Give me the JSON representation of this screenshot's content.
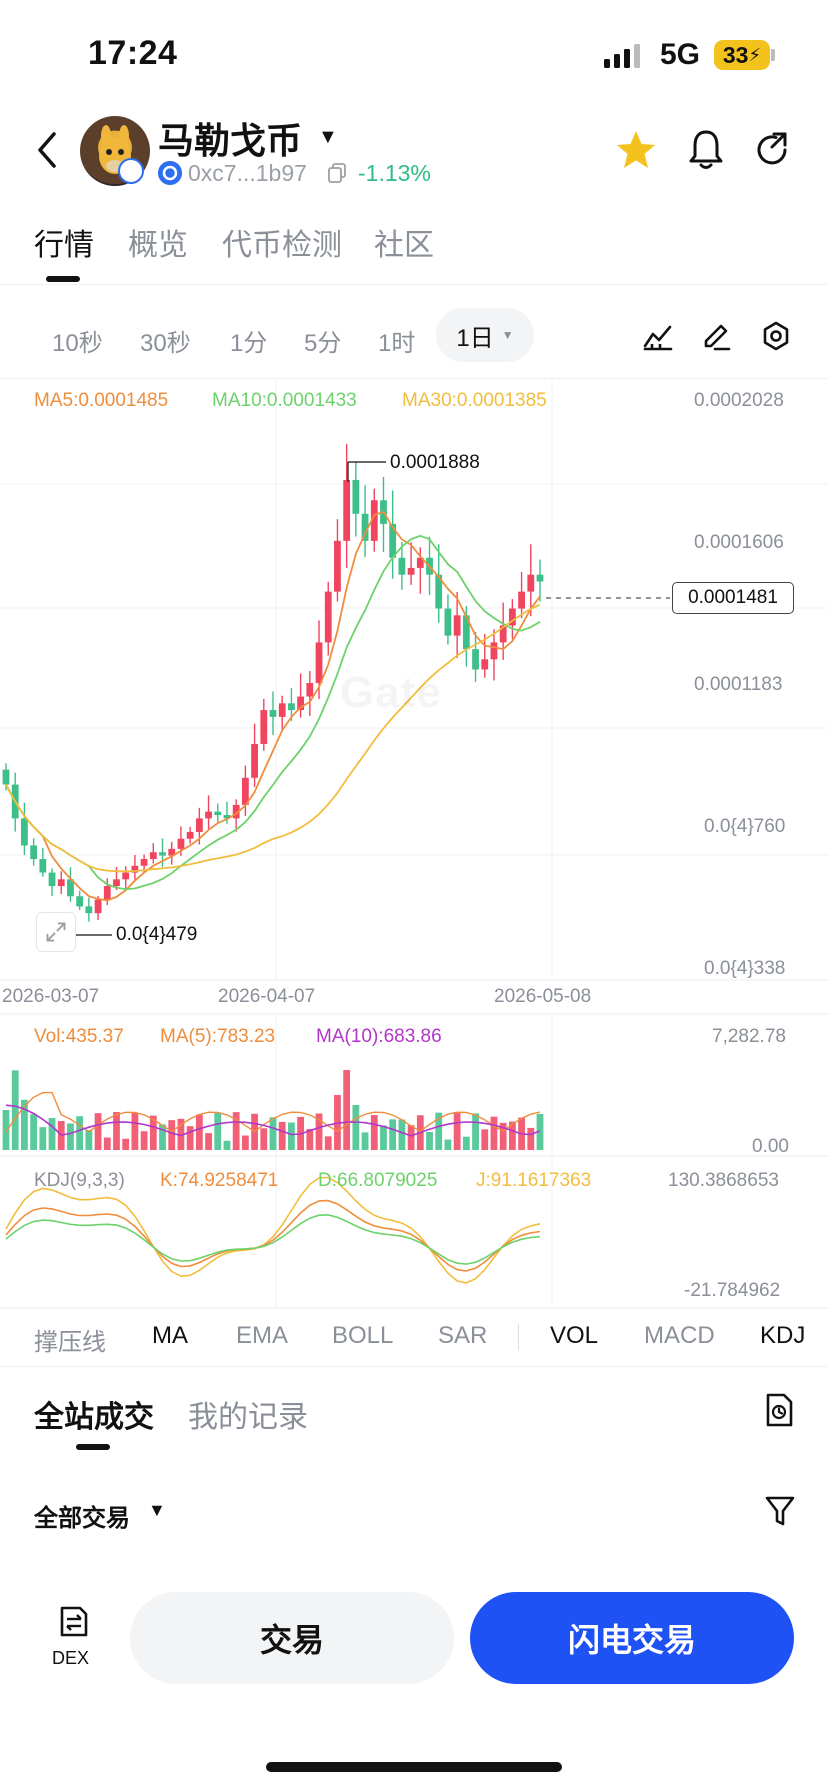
{
  "status_bar": {
    "time": "17:24",
    "network": "5G",
    "battery": "33"
  },
  "header": {
    "token_name": "马勒戈币",
    "address": "0xc7...1b97",
    "change": "-1.13%",
    "icons": [
      "back-icon",
      "star-icon",
      "bell-icon",
      "share-icon",
      "copy-icon"
    ]
  },
  "main_tabs": [
    "行情",
    "概览",
    "代币检测",
    "社区"
  ],
  "timeframes": {
    "items": [
      "10秒",
      "30秒",
      "1分",
      "5分",
      "1时"
    ],
    "selected": "1日"
  },
  "indicators_top": {
    "ma5": "MA5:0.0001485",
    "ma10": "MA10:0.0001433",
    "ma30": "MA30:0.0001385"
  },
  "colors": {
    "up": "#f0445f",
    "down": "#3dbf8a",
    "ma5": "#ef8d3c",
    "ma10": "#6cd26a",
    "ma30": "#f2bd3c",
    "ma_vol10": "#b236c9",
    "accent": "#1f52f5"
  },
  "chart_data": {
    "type": "candlestick",
    "price_axis_ticks": [
      "0.0002028",
      "0.0001606",
      "0.0001183",
      "0.0{4}760",
      "0.0{4}338"
    ],
    "x_ticks": [
      "2026-03-07",
      "2026-04-07",
      "2026-05-08"
    ],
    "current_price": "0.0001481",
    "high_label": "0.0001888",
    "low_label": "0.0{4}479",
    "watermark": "Gate",
    "close_series": [
      8.8e-05,
      7.8e-05,
      7e-05,
      6.6e-05,
      6.2e-05,
      5.8e-05,
      6e-05,
      5.5e-05,
      5.2e-05,
      5e-05,
      5.4e-05,
      5.8e-05,
      6e-05,
      6.2e-05,
      6.4e-05,
      6.6e-05,
      6.8e-05,
      6.7e-05,
      6.9e-05,
      7.2e-05,
      7.4e-05,
      7.8e-05,
      8e-05,
      7.9e-05,
      7.8e-05,
      8.2e-05,
      9e-05,
      0.0001,
      0.00011,
      0.000108,
      0.000112,
      0.00011,
      0.000114,
      0.000118,
      0.00013,
      0.000145,
      0.00016,
      0.000178,
      0.000168,
      0.00016,
      0.000172,
      0.000165,
      0.000155,
      0.00015,
      0.000152,
      0.000155,
      0.00015,
      0.00014,
      0.000132,
      0.000138,
      0.000128,
      0.000122,
      0.000125,
      0.00013,
      0.000135,
      0.00014,
      0.000145,
      0.00015,
      0.000148
    ],
    "volume": {
      "label": "Vol:435.37",
      "ma5": "MA(5):783.23",
      "ma10": "MA(10):683.86",
      "axis_max": "7,282.78",
      "axis_min": "0.00"
    },
    "kdj": {
      "label": "KDJ(9,3,3)",
      "k": "K:74.9258471",
      "d": "D:66.8079025",
      "j": "J:91.1617363",
      "axis_max": "130.3868653",
      "axis_min": "-21.784962"
    }
  },
  "indicator_tabs": [
    "撑压线",
    "MA",
    "EMA",
    "BOLL",
    "SAR",
    "VOL",
    "MACD",
    "KDJ"
  ],
  "indicator_active": [
    "MA",
    "VOL",
    "KDJ"
  ],
  "trades_tabs": [
    "全站成交",
    "我的记录"
  ],
  "filter": "全部交易",
  "bottom": {
    "dex_label": "DEX",
    "trade_label": "交易",
    "flash_label": "闪电交易"
  }
}
